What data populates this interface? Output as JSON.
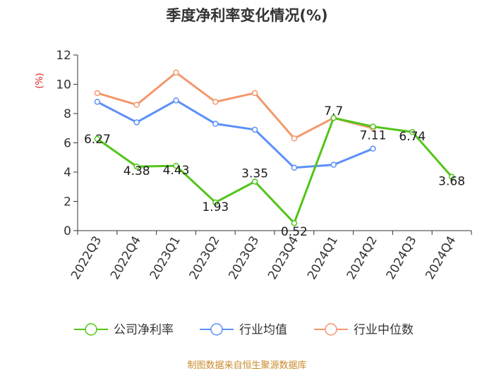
{
  "title": "季度净利率变化情况(%)",
  "source": "制图数据来自恒生聚源数据库",
  "chart_data": {
    "type": "line",
    "title": "季度净利率变化情况(%)",
    "ylabel": "(%)",
    "xlabel": "",
    "categories": [
      "2022Q3",
      "2022Q4",
      "2023Q1",
      "2023Q2",
      "2023Q3",
      "2023Q4",
      "2024Q1",
      "2024Q2",
      "2024Q3",
      "2024Q4"
    ],
    "ylim": [
      0,
      12
    ],
    "yticks": [
      0,
      2,
      4,
      6,
      8,
      10,
      12
    ],
    "grid": false,
    "legend_position": "bottom",
    "series": [
      {
        "name": "公司净利率",
        "color": "#52c41a",
        "values": [
          6.27,
          4.38,
          4.43,
          1.93,
          3.35,
          0.52,
          7.7,
          7.11,
          6.74,
          3.68
        ],
        "labels": [
          "6.27",
          "4.38",
          "4.43",
          "1.93",
          "3.35",
          "0.52",
          "7.7",
          "7.11",
          "6.74",
          "3.68"
        ]
      },
      {
        "name": "行业均值",
        "color": "#5b8ff9",
        "values": [
          8.8,
          7.4,
          8.9,
          7.3,
          6.9,
          4.3,
          4.5,
          5.6,
          null,
          null
        ]
      },
      {
        "name": "行业中位数",
        "color": "#f4976c",
        "values": [
          9.4,
          8.6,
          10.8,
          8.8,
          9.4,
          6.3,
          7.7,
          7.0,
          null,
          null
        ]
      }
    ]
  }
}
